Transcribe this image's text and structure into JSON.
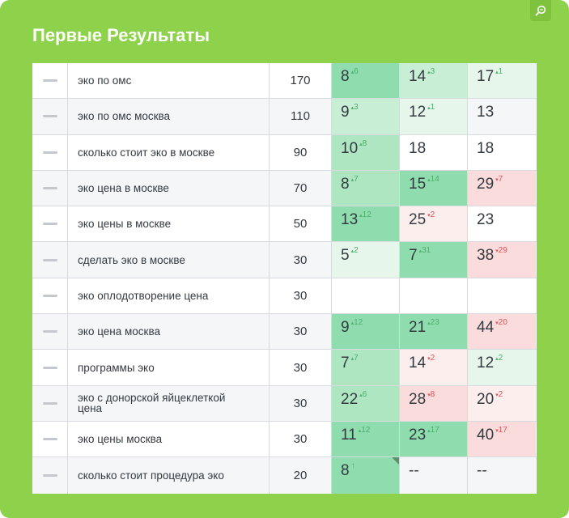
{
  "title": "Первые Результаты",
  "corner_icon": "search-zoom-icon",
  "colors": {
    "panel": "#8ed14a",
    "up": "#4caf6d",
    "down": "#e05555"
  },
  "rows": [
    {
      "keyword": "эко по омс",
      "volume": "170",
      "pos": [
        {
          "v": "8",
          "d": "6",
          "dir": "up",
          "c": "g4"
        },
        {
          "v": "14",
          "d": "3",
          "dir": "up",
          "c": "g2"
        },
        {
          "v": "17",
          "d": "1",
          "dir": "up",
          "c": "g1"
        }
      ]
    },
    {
      "keyword": "эко по омс москва",
      "volume": "110",
      "pos": [
        {
          "v": "9",
          "d": "3",
          "dir": "up",
          "c": "g2"
        },
        {
          "v": "12",
          "d": "1",
          "dir": "up",
          "c": "g1"
        },
        {
          "v": "13",
          "d": "",
          "dir": "",
          "c": ""
        }
      ]
    },
    {
      "keyword": "сколько стоит эко в москве",
      "volume": "90",
      "pos": [
        {
          "v": "10",
          "d": "8",
          "dir": "up",
          "c": "g3"
        },
        {
          "v": "18",
          "d": "",
          "dir": "",
          "c": ""
        },
        {
          "v": "18",
          "d": "",
          "dir": "",
          "c": ""
        }
      ]
    },
    {
      "keyword": "эко цена в москве",
      "volume": "70",
      "pos": [
        {
          "v": "8",
          "d": "7",
          "dir": "up",
          "c": "g3"
        },
        {
          "v": "15",
          "d": "14",
          "dir": "up",
          "c": "g4"
        },
        {
          "v": "29",
          "d": "7",
          "dir": "down",
          "c": "r2"
        }
      ]
    },
    {
      "keyword": "эко цены в москве",
      "volume": "50",
      "pos": [
        {
          "v": "13",
          "d": "12",
          "dir": "up",
          "c": "g4"
        },
        {
          "v": "25",
          "d": "2",
          "dir": "down",
          "c": "r1"
        },
        {
          "v": "23",
          "d": "",
          "dir": "",
          "c": ""
        }
      ]
    },
    {
      "keyword": "сделать эко в москве",
      "volume": "30",
      "pos": [
        {
          "v": "5",
          "d": "2",
          "dir": "up",
          "c": "g1"
        },
        {
          "v": "7",
          "d": "31",
          "dir": "up",
          "c": "g4"
        },
        {
          "v": "38",
          "d": "29",
          "dir": "down",
          "c": "r2"
        }
      ]
    },
    {
      "keyword": "эко оплодотворение цена",
      "volume": "30",
      "pos": [
        {
          "v": "",
          "d": "",
          "dir": "",
          "c": ""
        },
        {
          "v": "",
          "d": "",
          "dir": "",
          "c": ""
        },
        {
          "v": "",
          "d": "",
          "dir": "",
          "c": ""
        }
      ]
    },
    {
      "keyword": "эко цена москва",
      "volume": "30",
      "pos": [
        {
          "v": "9",
          "d": "12",
          "dir": "up",
          "c": "g4"
        },
        {
          "v": "21",
          "d": "23",
          "dir": "up",
          "c": "g4"
        },
        {
          "v": "44",
          "d": "20",
          "dir": "down",
          "c": "r2"
        }
      ]
    },
    {
      "keyword": "программы эко",
      "volume": "30",
      "pos": [
        {
          "v": "7",
          "d": "7",
          "dir": "up",
          "c": "g3"
        },
        {
          "v": "14",
          "d": "2",
          "dir": "down",
          "c": "r1"
        },
        {
          "v": "12",
          "d": "2",
          "dir": "up",
          "c": "g1"
        }
      ]
    },
    {
      "keyword": "эко с донорской яйцеклеткой цена",
      "volume": "30",
      "pos": [
        {
          "v": "22",
          "d": "6",
          "dir": "up",
          "c": "g3"
        },
        {
          "v": "28",
          "d": "8",
          "dir": "down",
          "c": "r2"
        },
        {
          "v": "20",
          "d": "2",
          "dir": "down",
          "c": "r1"
        }
      ]
    },
    {
      "keyword": "эко цены москва",
      "volume": "30",
      "pos": [
        {
          "v": "11",
          "d": "12",
          "dir": "up",
          "c": "g4"
        },
        {
          "v": "23",
          "d": "17",
          "dir": "up",
          "c": "g4"
        },
        {
          "v": "40",
          "d": "17",
          "dir": "down",
          "c": "r2"
        }
      ]
    },
    {
      "keyword": "сколько стоит процедура эко",
      "volume": "20",
      "pos": [
        {
          "v": "8",
          "d": "↑",
          "dir": "up",
          "c": "g4",
          "flag": true
        },
        {
          "v": "--",
          "d": "",
          "dir": "",
          "c": ""
        },
        {
          "v": "--",
          "d": "",
          "dir": "",
          "c": ""
        }
      ]
    }
  ]
}
